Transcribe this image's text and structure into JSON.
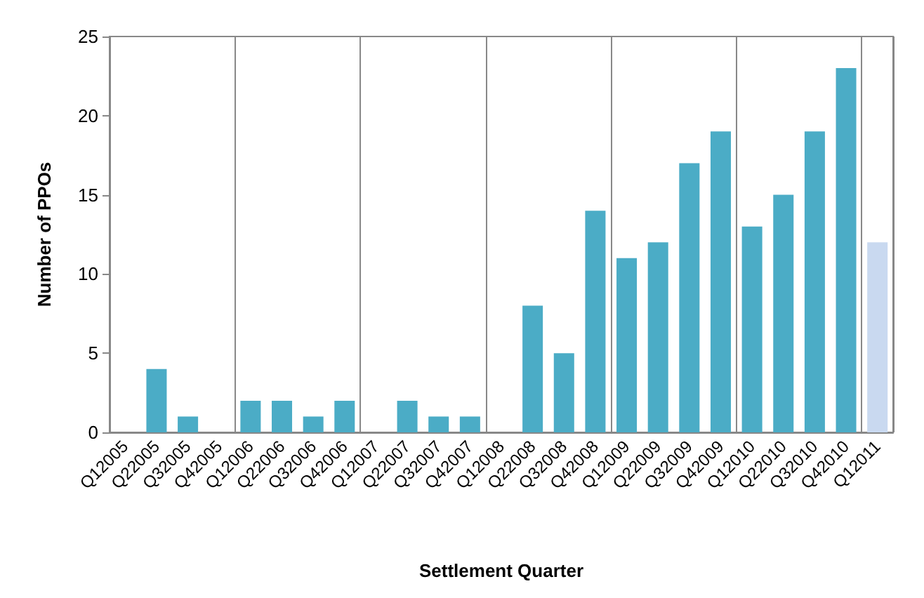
{
  "chart_data": {
    "type": "bar",
    "xlabel": "Settlement Quarter",
    "ylabel": "Number of PPOs",
    "categories": [
      "Q12005",
      "Q22005",
      "Q32005",
      "Q42005",
      "Q12006",
      "Q22006",
      "Q32006",
      "Q42006",
      "Q12007",
      "Q22007",
      "Q32007",
      "Q42007",
      "Q12008",
      "Q22008",
      "Q32008",
      "Q42008",
      "Q12009",
      "Q22009",
      "Q32009",
      "Q42009",
      "Q12010",
      "Q22010",
      "Q32010",
      "Q42010",
      "Q12011"
    ],
    "values": [
      0,
      4,
      1,
      0,
      2,
      2,
      1,
      2,
      0,
      2,
      1,
      1,
      0,
      8,
      5,
      14,
      11,
      12,
      17,
      19,
      13,
      15,
      19,
      23,
      12
    ],
    "colors": [
      "#4bacc6",
      "#4bacc6",
      "#4bacc6",
      "#4bacc6",
      "#4bacc6",
      "#4bacc6",
      "#4bacc6",
      "#4bacc6",
      "#4bacc6",
      "#4bacc6",
      "#4bacc6",
      "#4bacc6",
      "#4bacc6",
      "#4bacc6",
      "#4bacc6",
      "#4bacc6",
      "#4bacc6",
      "#4bacc6",
      "#4bacc6",
      "#4bacc6",
      "#4bacc6",
      "#4bacc6",
      "#4bacc6",
      "#4bacc6",
      "#c9d9f0"
    ],
    "ylim": [
      0,
      25
    ],
    "yticks": [
      0,
      5,
      10,
      15,
      20,
      25
    ],
    "grid": "x"
  }
}
